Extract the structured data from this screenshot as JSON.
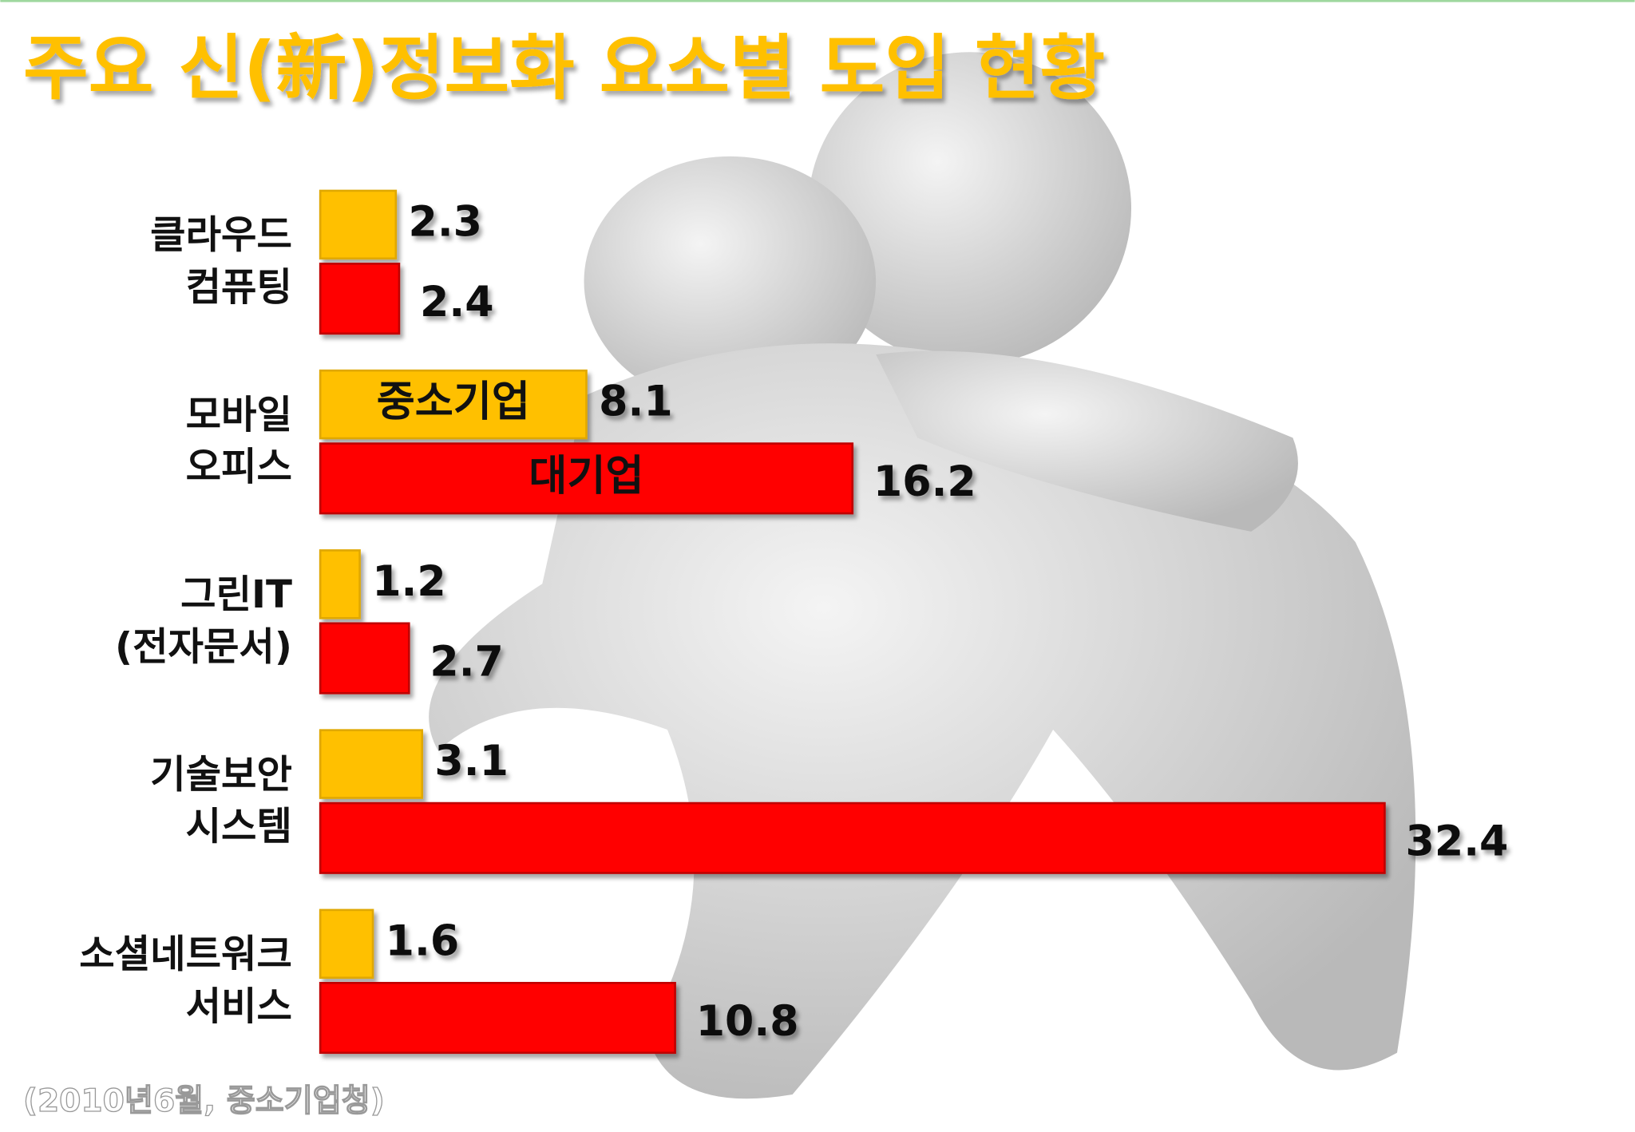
{
  "chart_data": {
    "type": "bar",
    "orientation": "horizontal",
    "title": "주요 신(新)정보화 요소별 도입 현황",
    "source": "(2010년6월, 중소기업청)",
    "categories": [
      [
        "클라우드",
        "컴퓨팅"
      ],
      [
        "모바일",
        "오피스"
      ],
      [
        "그린IT",
        "(전자문서)"
      ],
      [
        "기술보안",
        "시스템"
      ],
      [
        "소셜네트워크",
        "서비스"
      ]
    ],
    "series": [
      {
        "name": "중소기업",
        "color": "#ffc000",
        "values": [
          2.3,
          8.1,
          1.2,
          3.1,
          1.6
        ]
      },
      {
        "name": "대기업",
        "color": "#ff0000",
        "values": [
          2.4,
          16.2,
          2.7,
          32.4,
          10.8
        ]
      }
    ],
    "xlim": [
      0,
      33
    ]
  }
}
